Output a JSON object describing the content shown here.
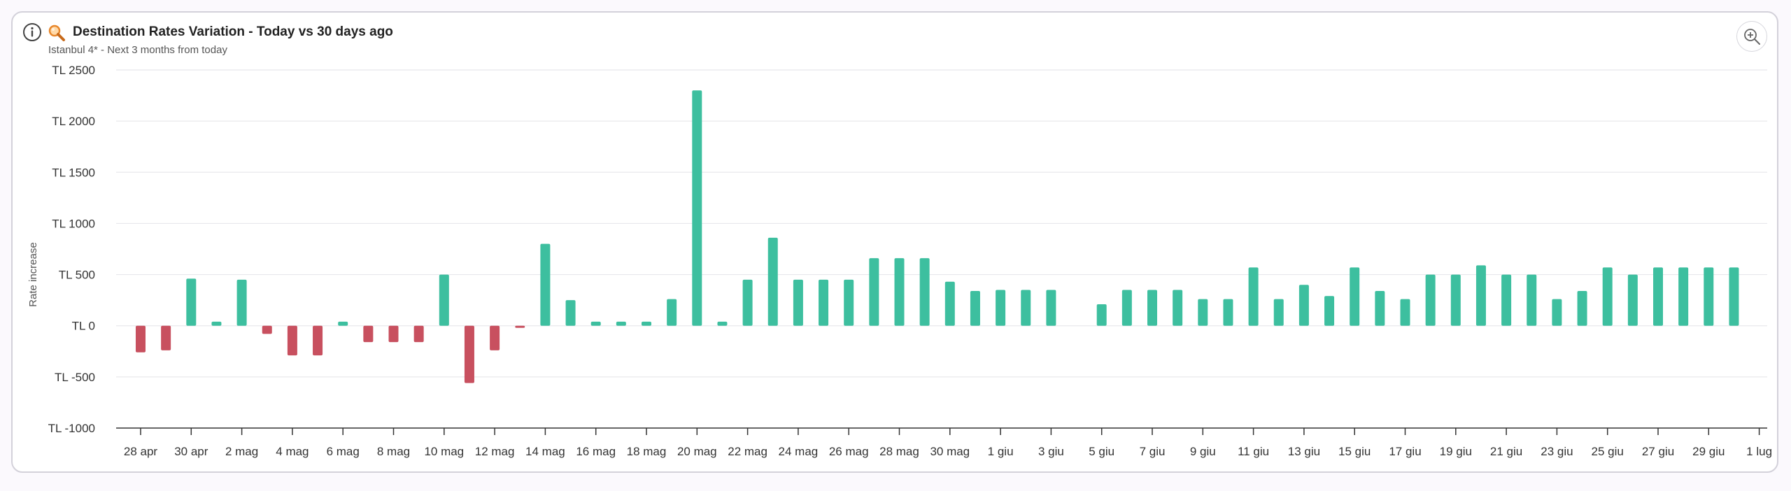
{
  "header": {
    "title": "Destination Rates Variation - Today vs 30 days ago",
    "subtitle": "Istanbul 4* - Next 3 months from today"
  },
  "colors": {
    "positive": "#3dbf9f",
    "negative": "#c8505f",
    "grid": "#e8e8ec",
    "axis": "#333333"
  },
  "chart_data": {
    "type": "bar",
    "ylabel": "Rate increase",
    "xlabel": "",
    "ylim": [
      -1000,
      2500
    ],
    "yticks": [
      2500,
      2000,
      1500,
      1000,
      500,
      0,
      -500,
      -1000
    ],
    "ytick_labels": [
      "TL 2500",
      "TL 2000",
      "TL 1500",
      "TL 1000",
      "TL 500",
      "TL 0",
      "TL -500",
      "TL -1000"
    ],
    "grid": true,
    "legend": "none",
    "x_tick_labels": [
      "28 apr",
      "30 apr",
      "2 mag",
      "4 mag",
      "6 mag",
      "8 mag",
      "10 mag",
      "12 mag",
      "14 mag",
      "16 mag",
      "18 mag",
      "20 mag",
      "22 mag",
      "24 mag",
      "26 mag",
      "28 mag",
      "30 mag",
      "1 giu",
      "3 giu",
      "5 giu",
      "7 giu",
      "9 giu",
      "11 giu",
      "13 giu",
      "15 giu",
      "17 giu",
      "19 giu",
      "21 giu",
      "23 giu",
      "25 giu",
      "27 giu",
      "29 giu",
      "1 lug"
    ],
    "categories": [
      "28 apr",
      "29 apr",
      "30 apr",
      "1 mag",
      "2 mag",
      "3 mag",
      "4 mag",
      "5 mag",
      "6 mag",
      "7 mag",
      "8 mag",
      "9 mag",
      "10 mag",
      "11 mag",
      "12 mag",
      "13 mag",
      "14 mag",
      "15 mag",
      "16 mag",
      "17 mag",
      "18 mag",
      "19 mag",
      "20 mag",
      "21 mag",
      "22 mag",
      "23 mag",
      "24 mag",
      "25 mag",
      "26 mag",
      "27 mag",
      "28 mag",
      "29 mag",
      "30 mag",
      "31 mag",
      "1 giu",
      "2 giu",
      "3 giu",
      "4 giu",
      "5 giu",
      "6 giu",
      "7 giu",
      "8 giu",
      "9 giu",
      "10 giu",
      "11 giu",
      "12 giu",
      "13 giu",
      "14 giu",
      "15 giu",
      "16 giu",
      "17 giu",
      "18 giu",
      "19 giu",
      "20 giu",
      "21 giu",
      "22 giu",
      "23 giu",
      "24 giu",
      "25 giu",
      "26 giu",
      "27 giu",
      "28 giu",
      "29 giu",
      "30 giu"
    ],
    "values": [
      -260,
      -240,
      460,
      40,
      450,
      -80,
      -290,
      -290,
      40,
      -160,
      -160,
      -160,
      500,
      -560,
      -240,
      -10,
      800,
      250,
      40,
      40,
      40,
      260,
      2300,
      40,
      450,
      860,
      450,
      450,
      450,
      660,
      660,
      660,
      430,
      340,
      350,
      350,
      350,
      0,
      210,
      350,
      350,
      350,
      260,
      260,
      570,
      260,
      400,
      290,
      570,
      340,
      260,
      500,
      500,
      590,
      500,
      500,
      260,
      340,
      570,
      500,
      570,
      570,
      570,
      570
    ]
  },
  "toolbar": {
    "zoom_icon": "zoom-in-icon",
    "info_icon": "info-icon",
    "emoji_icon": "magnifier-emoji-icon"
  }
}
